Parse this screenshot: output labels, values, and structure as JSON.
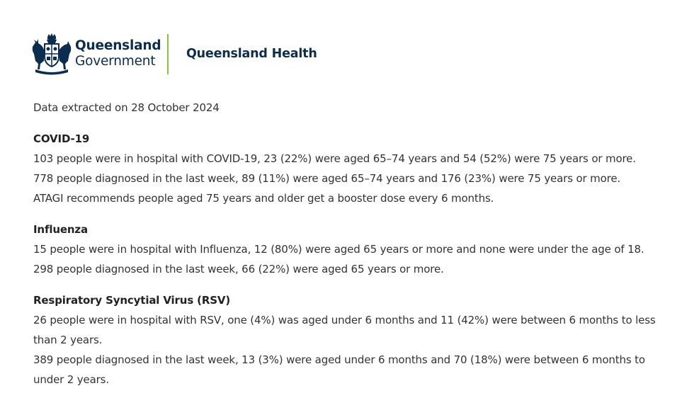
{
  "header": {
    "org_line1": "Queensland",
    "org_line2": "Government",
    "agency": "Queensland Health",
    "crest_icon": "queensland-coat-of-arms-icon",
    "colors": {
      "navy": "#0b2d4f",
      "divider_green": "#8cc63f"
    }
  },
  "extracted": "Data extracted on 28 October 2024",
  "sections": [
    {
      "title": "COVID-19",
      "lines": [
        "103 people were in hospital with COVID-19, 23 (22%) were aged 65–74 years and 54 (52%) were 75 years or more.",
        "778 people diagnosed in the last week, 89 (11%) were aged 65–74 years and 176 (23%) were 75 years or more.",
        "ATAGI recommends people aged 75 years and older get a booster dose every 6 months."
      ]
    },
    {
      "title": "Influenza",
      "lines": [
        "15 people were in hospital with Influenza, 12 (80%) were aged 65 years or more and none were under the age of 18.",
        "298 people diagnosed in the last week, 66 (22%) were aged 65 years or more."
      ]
    },
    {
      "title": "Respiratory Syncytial Virus (RSV)",
      "lines": [
        "26 people were in hospital with RSV, one (4%) was aged under 6 months and 11 (42%) were between 6 months to less than 2 years.",
        "389 people diagnosed in the last week, 13 (3%) were aged under 6 months and 70 (18%) were between 6 months to under 2 years."
      ]
    }
  ]
}
